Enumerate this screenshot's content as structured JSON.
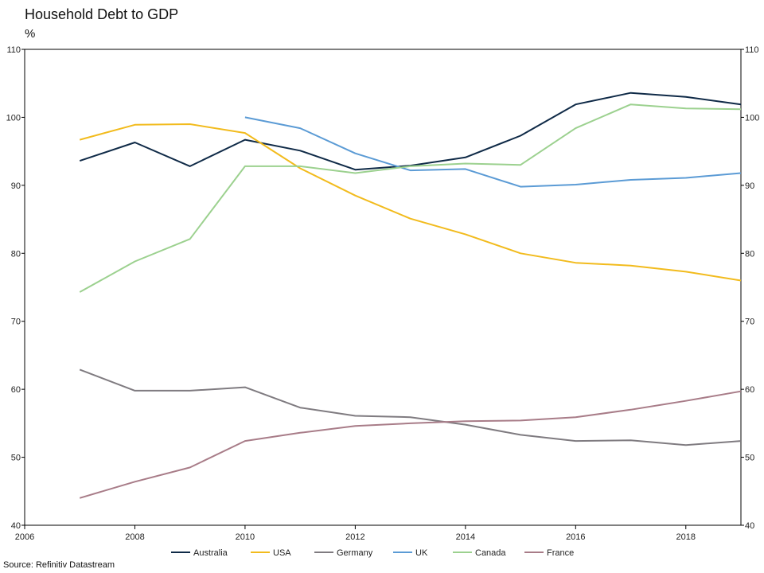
{
  "chart_data": {
    "type": "line",
    "title": "Household Debt to GDP",
    "unit": "%",
    "source": "Source: Refinitiv Datastream",
    "x_ticks": [
      "2006",
      "2008",
      "2010",
      "2012",
      "2014",
      "2016",
      "2018"
    ],
    "y_ticks": [
      "40",
      "50",
      "60",
      "70",
      "80",
      "90",
      "100",
      "110"
    ],
    "xlim": [
      2006,
      2019
    ],
    "ylim": [
      40,
      110
    ],
    "grid": false,
    "legend_position": "bottom",
    "series": [
      {
        "name": "Australia",
        "color": "#0f2a47",
        "x": [
          2007,
          2008,
          2009,
          2010,
          2011,
          2012,
          2013,
          2014,
          2015,
          2016,
          2017,
          2018,
          2019
        ],
        "values": [
          93.6,
          96.3,
          92.8,
          96.7,
          95.1,
          92.3,
          92.9,
          94.1,
          97.3,
          101.9,
          103.6,
          103.0,
          101.9
        ]
      },
      {
        "name": "USA",
        "color": "#f2bb1d",
        "x": [
          2007,
          2008,
          2009,
          2010,
          2011,
          2012,
          2013,
          2014,
          2015,
          2016,
          2017,
          2018,
          2019
        ],
        "values": [
          96.7,
          98.9,
          99.0,
          97.7,
          92.5,
          88.5,
          85.1,
          82.8,
          80.0,
          78.6,
          78.2,
          77.3,
          76.0
        ]
      },
      {
        "name": "Germany",
        "color": "#7f7b80",
        "x": [
          2007,
          2008,
          2009,
          2010,
          2011,
          2012,
          2013,
          2014,
          2015,
          2016,
          2017,
          2018,
          2019
        ],
        "values": [
          62.9,
          59.8,
          59.8,
          60.3,
          57.3,
          56.1,
          55.9,
          54.8,
          53.3,
          52.4,
          52.5,
          51.8,
          52.4
        ]
      },
      {
        "name": "UK",
        "color": "#5b9bd5",
        "x": [
          2010,
          2011,
          2012,
          2013,
          2014,
          2015,
          2016,
          2017,
          2018,
          2019
        ],
        "values": [
          100.0,
          98.4,
          94.7,
          92.2,
          92.4,
          89.8,
          90.1,
          90.8,
          91.1,
          91.8
        ]
      },
      {
        "name": "Canada",
        "color": "#9cd18f",
        "x": [
          2007,
          2008,
          2009,
          2010,
          2011,
          2012,
          2013,
          2014,
          2015,
          2016,
          2017,
          2018,
          2019
        ],
        "values": [
          74.3,
          78.8,
          82.1,
          92.8,
          92.8,
          91.8,
          92.8,
          93.2,
          93.0,
          98.4,
          101.9,
          101.3,
          101.2
        ]
      },
      {
        "name": "France",
        "color": "#a87c88",
        "x": [
          2007,
          2008,
          2009,
          2010,
          2011,
          2012,
          2013,
          2014,
          2015,
          2016,
          2017,
          2018,
          2019
        ],
        "values": [
          44.0,
          46.4,
          48.5,
          52.4,
          53.6,
          54.6,
          55.0,
          55.3,
          55.4,
          55.9,
          57.0,
          58.3,
          59.7
        ]
      }
    ]
  }
}
